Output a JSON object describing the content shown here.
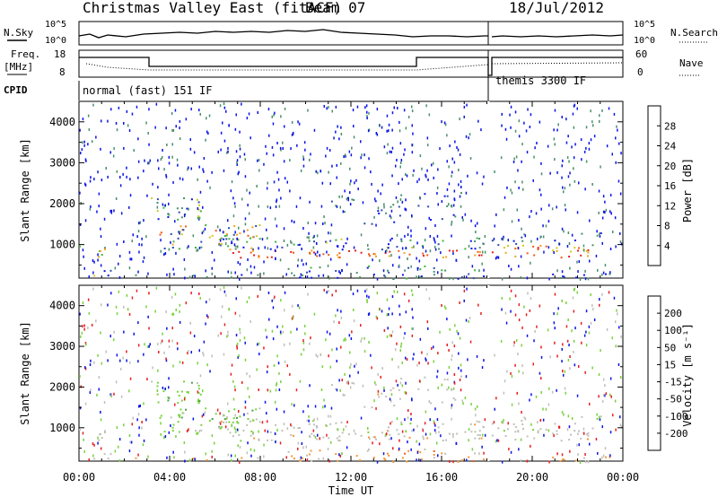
{
  "header": {
    "station": "Christmas Valley East (fitACF)",
    "beam": "Beam 07",
    "date": "18/Jul/2012"
  },
  "labels": {
    "nsky": "N.Sky",
    "freq": "Freq.",
    "freq_unit": "[MHz]",
    "cpid": "CPID",
    "nsearch": "N.Search",
    "nave": "Nave",
    "cpid_mode_1": "normal (fast) 151 IF",
    "cpid_mode_2": "themis 3300 IF",
    "xlabel": "Time UT",
    "ylabel_top": "Slant Range [km]",
    "ylabel_bottom": "Slant Range [km]",
    "cbar_power_title": "Power [dB]",
    "cbar_velocity_title": "Velocity [m s⁻¹]"
  },
  "small_ticks": {
    "noise_left_top": "10^5",
    "noise_left_bottom": "10^0",
    "noise_right_top": "10^5",
    "noise_right_bottom": "10^0",
    "freq_left_top": "18",
    "freq_left_bottom": "8",
    "nave_right_top": "60",
    "nave_right_bottom": "0"
  },
  "colors": {
    "power": [
      "#0a14e6",
      "#2d4db0",
      "#4a9068",
      "#3cb43c",
      "#d2c81e",
      "#f5a01e",
      "#f05a14",
      "#e61e1e"
    ],
    "velocity": [
      "#e61e1e",
      "#f05a14",
      "#f59632",
      "#c8c8c8",
      "#b4b4b4",
      "#78d23c",
      "#4aa04a",
      "#2d4db0",
      "#0a14e6"
    ],
    "gray": "#c0c0b8"
  },
  "chart_data": [
    {
      "type": "heatmap",
      "name": "power",
      "x_ticks": [
        "00:00",
        "04:00",
        "08:00",
        "12:00",
        "16:00",
        "20:00",
        "00:00"
      ],
      "y_ticks": [
        1000,
        2000,
        3000,
        4000
      ],
      "ylim": [
        180,
        4500
      ],
      "xlim_hours": [
        0,
        24
      ],
      "colorbar": {
        "title": "Power [dB]",
        "ticks": [
          4,
          8,
          12,
          16,
          20,
          24,
          28
        ]
      }
    },
    {
      "type": "heatmap",
      "name": "velocity",
      "x_ticks": [
        "00:00",
        "04:00",
        "08:00",
        "12:00",
        "16:00",
        "20:00",
        "00:00"
      ],
      "y_ticks": [
        1000,
        2000,
        3000,
        4000
      ],
      "ylim": [
        180,
        4500
      ],
      "xlim_hours": [
        0,
        24
      ],
      "colorbar": {
        "title": "Velocity [m s⁻¹]",
        "ticks": [
          200,
          100,
          50,
          15,
          -15,
          -50,
          -100,
          -200
        ]
      }
    }
  ]
}
